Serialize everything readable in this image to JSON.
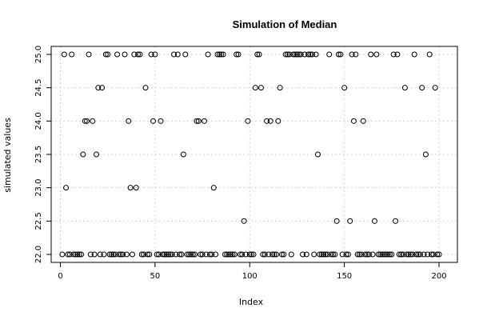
{
  "chart_data": {
    "type": "scatter",
    "title": "Simulation of Median",
    "xlabel": "Index",
    "ylabel": "simulated values",
    "xlim": [
      0,
      200
    ],
    "ylim": [
      22,
      25
    ],
    "xticks": [
      0,
      50,
      100,
      150,
      200
    ],
    "yticks": [
      22.0,
      22.5,
      23.0,
      23.5,
      24.0,
      24.5,
      25.0
    ],
    "ytick_labels": [
      "22.0",
      "22.5",
      "23.0",
      "23.5",
      "24.0",
      "24.5",
      "25.0"
    ],
    "grid": true,
    "marker": "open-circle",
    "series": [
      {
        "x": [
          1,
          2,
          3,
          4,
          5,
          6,
          7,
          8,
          9,
          10,
          11,
          12,
          13,
          14,
          15,
          16,
          17,
          18,
          19,
          20,
          21,
          22,
          23,
          24,
          25,
          26,
          27,
          28,
          29,
          30,
          31,
          32,
          33,
          34,
          35,
          36,
          37,
          38,
          39,
          40,
          41,
          42,
          43,
          44,
          45,
          46,
          47,
          48,
          49,
          50,
          51,
          52,
          53,
          54,
          55,
          56,
          57,
          58,
          59,
          60,
          61,
          62,
          63,
          64,
          65,
          66,
          67,
          68,
          69,
          70,
          71,
          72,
          73,
          74,
          75,
          76,
          77,
          78,
          79,
          80,
          81,
          82,
          83,
          84,
          85,
          86,
          87,
          88,
          89,
          90,
          91,
          92,
          93,
          94,
          95,
          96,
          97,
          98,
          99,
          100,
          101,
          102,
          103,
          104,
          105,
          106,
          107,
          108,
          109,
          110,
          111,
          112,
          113,
          114,
          115,
          116,
          117,
          118,
          119,
          120,
          121,
          122,
          123,
          124,
          125,
          126,
          127,
          128,
          129,
          130,
          131,
          132,
          133,
          134,
          135,
          136,
          137,
          138,
          139,
          140,
          141,
          142,
          143,
          144,
          145,
          146,
          147,
          148,
          149,
          150,
          151,
          152,
          153,
          154,
          155,
          156,
          157,
          158,
          159,
          160,
          161,
          162,
          163,
          164,
          165,
          166,
          167,
          168,
          169,
          170,
          171,
          172,
          173,
          174,
          175,
          176,
          177,
          178,
          179,
          180,
          181,
          182,
          183,
          184,
          185,
          186,
          187,
          188,
          189,
          190,
          191,
          192,
          193,
          194,
          195,
          196,
          197,
          198,
          199,
          200
        ],
        "y": [
          22.0,
          25.0,
          23.0,
          22.0,
          22.0,
          25.0,
          22.0,
          22.0,
          22.0,
          22.0,
          22.0,
          23.5,
          24.0,
          24.0,
          25.0,
          22.0,
          24.0,
          22.0,
          23.5,
          24.5,
          22.0,
          24.5,
          22.0,
          25.0,
          25.0,
          22.0,
          22.0,
          22.0,
          22.0,
          25.0,
          22.0,
          22.0,
          22.0,
          25.0,
          22.0,
          24.0,
          23.0,
          22.0,
          25.0,
          23.0,
          25.0,
          25.0,
          22.0,
          22.0,
          24.5,
          22.0,
          22.0,
          25.0,
          24.0,
          25.0,
          22.0,
          22.0,
          24.0,
          22.0,
          22.0,
          22.0,
          22.0,
          22.0,
          22.0,
          25.0,
          22.0,
          25.0,
          22.0,
          22.0,
          23.5,
          25.0,
          22.0,
          22.0,
          22.0,
          22.0,
          22.0,
          24.0,
          24.0,
          22.0,
          22.0,
          24.0,
          22.0,
          25.0,
          22.0,
          22.0,
          23.0,
          22.0,
          25.0,
          25.0,
          25.0,
          25.0,
          22.0,
          22.0,
          22.0,
          22.0,
          22.0,
          22.0,
          25.0,
          25.0,
          22.0,
          22.0,
          22.5,
          22.0,
          24.0,
          22.0,
          22.0,
          22.0,
          24.5,
          25.0,
          25.0,
          24.5,
          22.0,
          22.0,
          24.0,
          22.0,
          24.0,
          22.0,
          22.0,
          22.0,
          24.0,
          24.5,
          22.0,
          22.0,
          25.0,
          25.0,
          25.0,
          22.0,
          25.0,
          25.0,
          25.0,
          25.0,
          25.0,
          22.0,
          25.0,
          22.0,
          25.0,
          25.0,
          25.0,
          22.0,
          25.0,
          23.5,
          22.0,
          22.0,
          22.0,
          22.0,
          22.0,
          25.0,
          22.0,
          22.0,
          22.0,
          22.5,
          25.0,
          25.0,
          22.0,
          24.5,
          22.0,
          22.0,
          22.5,
          25.0,
          24.0,
          25.0,
          22.0,
          22.0,
          22.0,
          24.0,
          22.0,
          22.0,
          22.0,
          25.0,
          22.0,
          22.5,
          25.0,
          22.0,
          22.0,
          22.0,
          22.0,
          22.0,
          22.0,
          22.0,
          22.0,
          25.0,
          22.5,
          25.0,
          22.0,
          22.0,
          22.0,
          24.5,
          22.0,
          22.0,
          22.0,
          22.0,
          25.0,
          22.0,
          22.0,
          22.0,
          24.5,
          22.0,
          23.5,
          22.0,
          25.0,
          22.0,
          22.0,
          24.5,
          22.0,
          22.0
        ]
      }
    ]
  }
}
